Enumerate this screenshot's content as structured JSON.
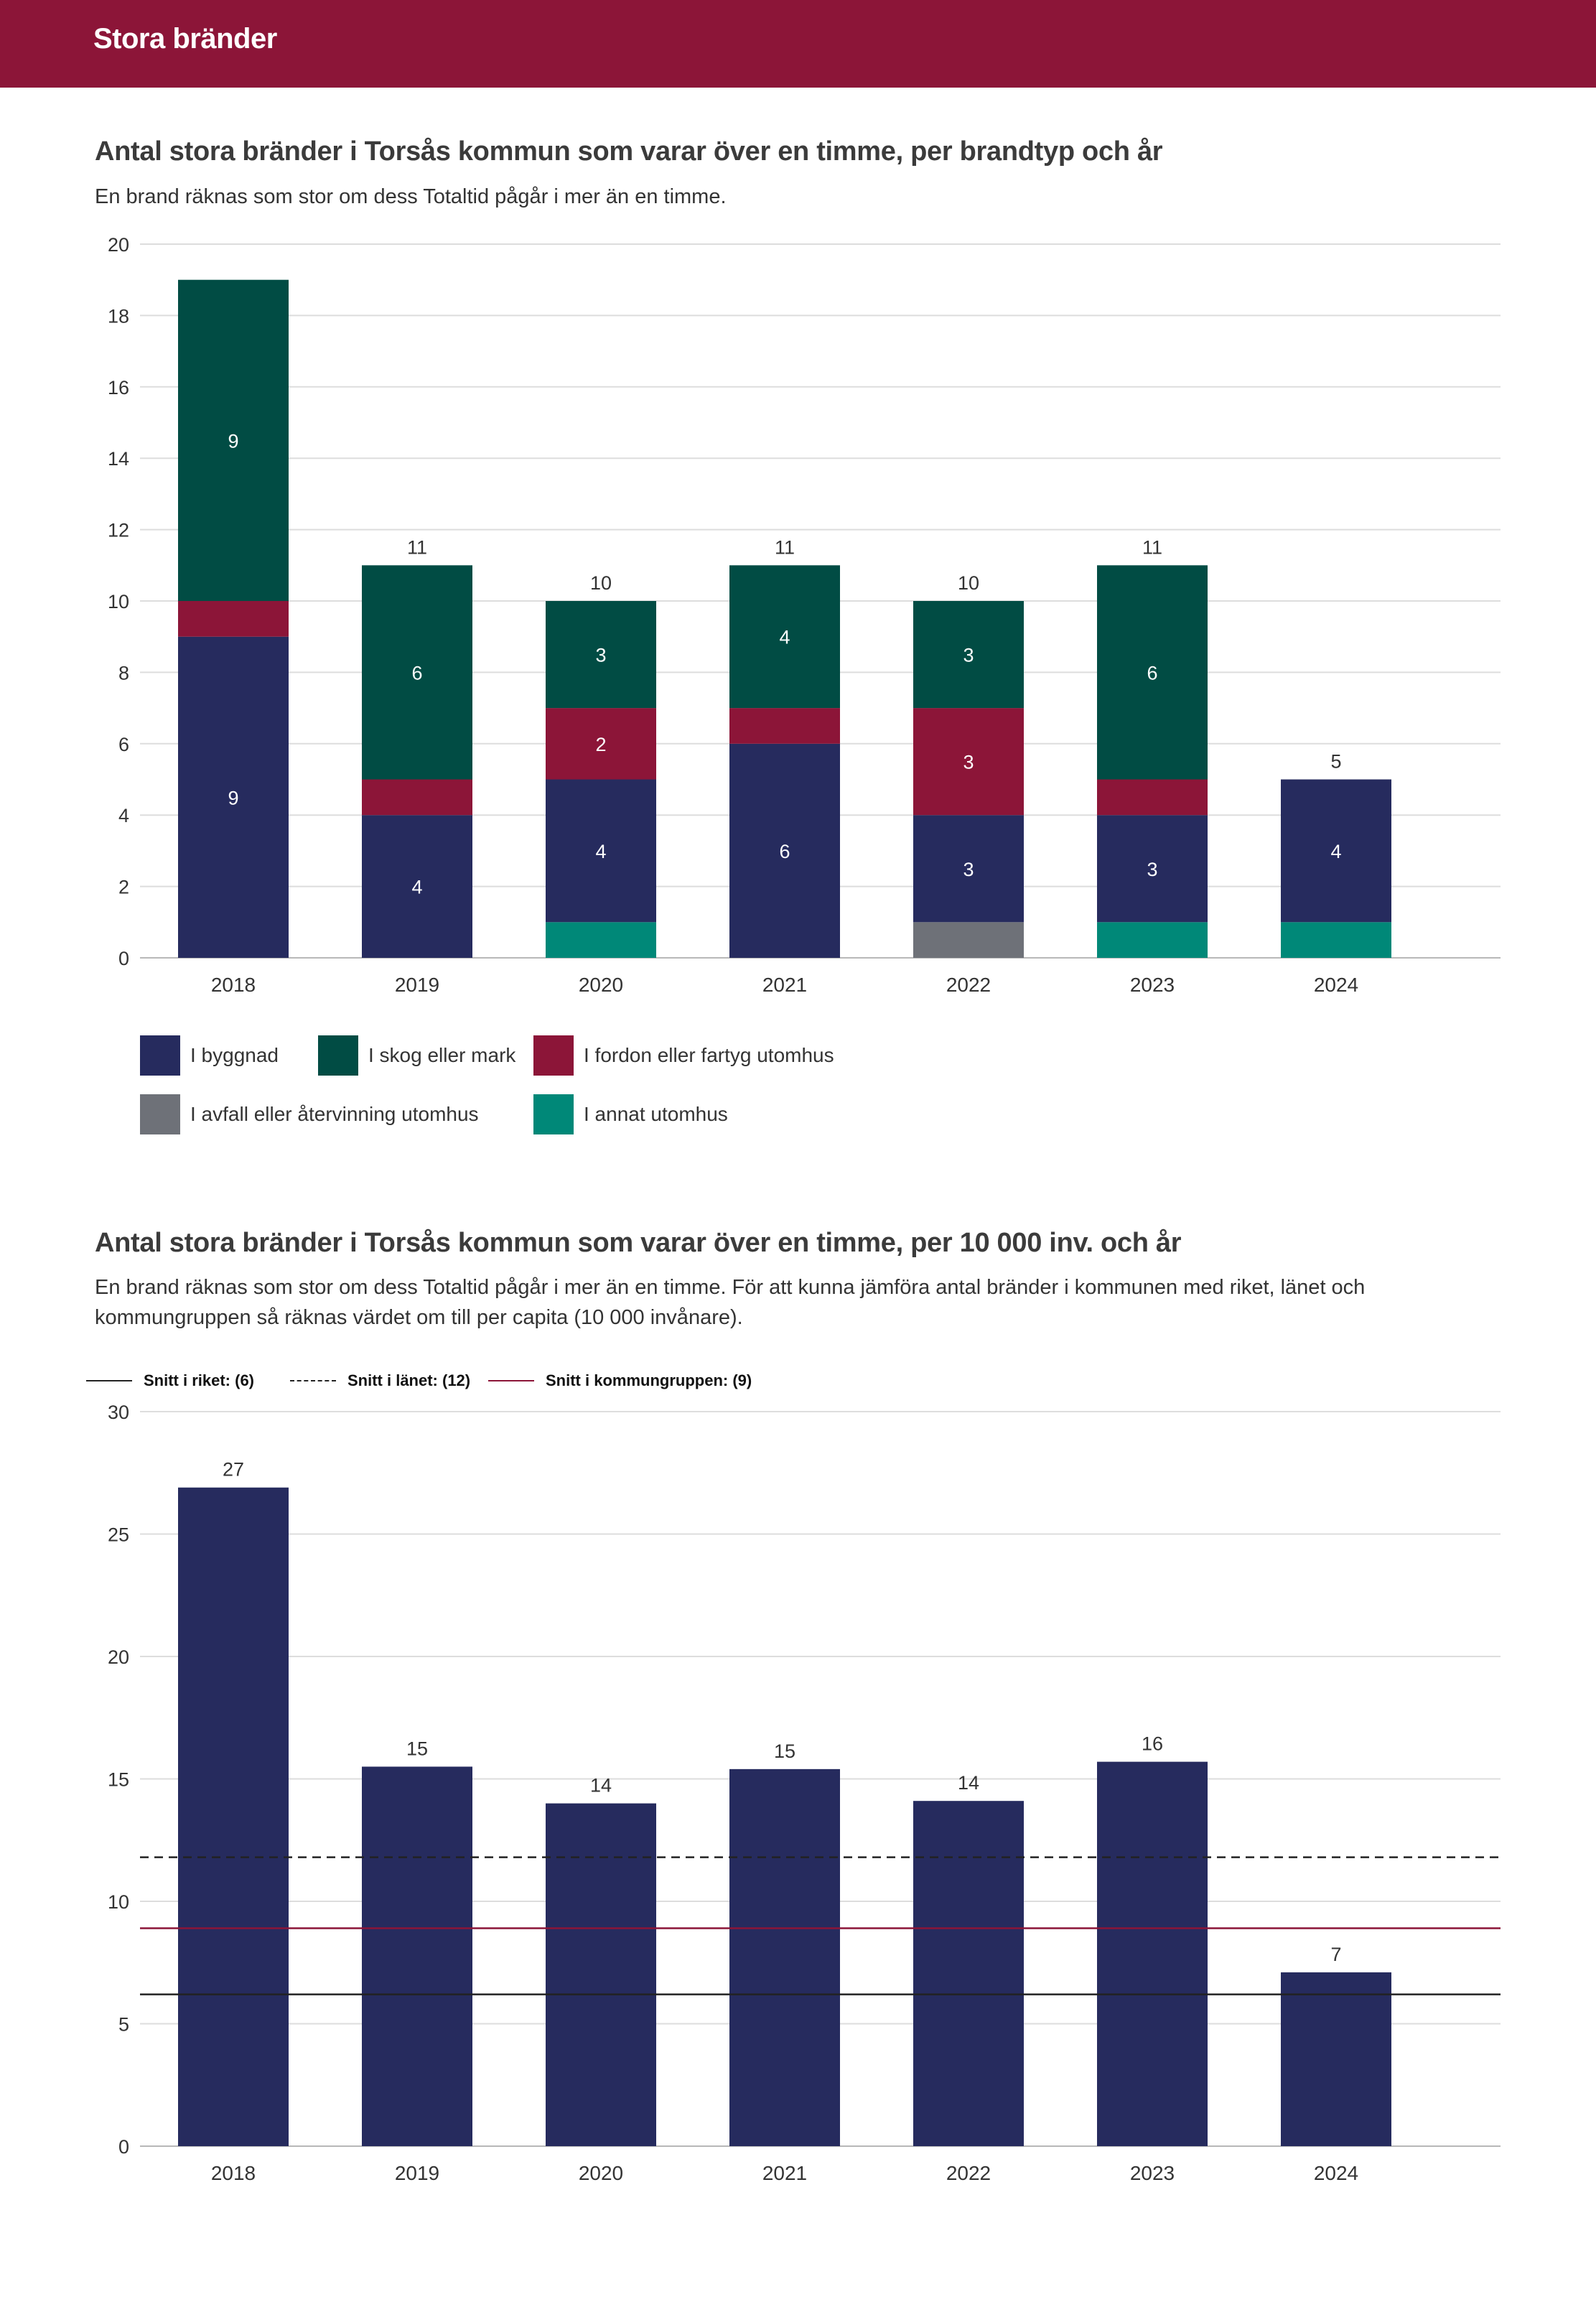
{
  "header": {
    "title": "Stora bränder"
  },
  "colors": {
    "header_bg": "#8c1538",
    "byggnad": "#262b5e",
    "skog": "#014c44",
    "fordon": "#8c1538",
    "avfall": "#6e7178",
    "annat": "#008878",
    "bar_single": "#262b5e",
    "grid": "#dddddd"
  },
  "chart1": {
    "title": "Antal stora bränder i Torsås kommun som varar över en timme, per brandtyp och år",
    "subtitle": "En brand räknas som stor om dess Totaltid pågår i mer än en timme."
  },
  "chart2": {
    "title": "Antal stora bränder i Torsås kommun som varar över en timme, per 10 000 inv. och år",
    "subtitle": "En brand räknas som stor om dess Totaltid pågår i mer än en timme. För att kunna jämföra antal bränder i kommunen med riket, länet och kommungruppen så räknas värdet om till per capita (10 000 invånare).",
    "ref_legend": [
      {
        "label": "Snitt i riket: (6)",
        "style": "solid",
        "color": "#222222"
      },
      {
        "label": "Snitt i länet: (12)",
        "style": "dashed",
        "color": "#222222"
      },
      {
        "label": "Snitt i kommungruppen: (9)",
        "style": "solid",
        "color": "#8c1538"
      }
    ]
  },
  "chart_data": [
    {
      "type": "bar",
      "stacked": true,
      "title": "Antal stora bränder i Torsås kommun som varar över en timme, per brandtyp och år",
      "categories": [
        "2018",
        "2019",
        "2020",
        "2021",
        "2022",
        "2023",
        "2024"
      ],
      "ylim": [
        0,
        20
      ],
      "yticks": [
        0,
        2,
        4,
        6,
        8,
        10,
        12,
        14,
        16,
        18,
        20
      ],
      "grid": true,
      "legend_position": "bottom",
      "series": [
        {
          "name": "I annat utomhus",
          "color": "#008878",
          "values": [
            0,
            0,
            1,
            0,
            0,
            1,
            1
          ],
          "labels": [
            "",
            "",
            "",
            "",
            "",
            "",
            ""
          ]
        },
        {
          "name": "I avfall eller återvinning utomhus",
          "color": "#6e7178",
          "values": [
            0,
            0,
            0,
            0,
            1,
            0,
            0
          ],
          "labels": [
            "",
            "",
            "",
            "",
            "",
            "",
            ""
          ]
        },
        {
          "name": "I byggnad",
          "color": "#262b5e",
          "values": [
            9,
            4,
            4,
            6,
            3,
            3,
            4
          ],
          "labels": [
            "9",
            "4",
            "4",
            "6",
            "3",
            "3",
            "4"
          ]
        },
        {
          "name": "I fordon eller fartyg utomhus",
          "color": "#8c1538",
          "values": [
            1,
            1,
            2,
            1,
            3,
            1,
            0
          ],
          "labels": [
            "",
            "",
            "2",
            "",
            "3",
            "",
            ""
          ]
        },
        {
          "name": "I skog eller mark",
          "color": "#014c44",
          "values": [
            9,
            6,
            3,
            4,
            3,
            6,
            0
          ],
          "labels": [
            "9",
            "6",
            "3",
            "4",
            "3",
            "6",
            ""
          ]
        }
      ],
      "totals": [
        "",
        "11",
        "10",
        "11",
        "10",
        "11",
        "5"
      ]
    },
    {
      "type": "bar",
      "title": "Antal stora bränder i Torsås kommun som varar över en timme, per 10 000 inv. och år",
      "categories": [
        "2018",
        "2019",
        "2020",
        "2021",
        "2022",
        "2023",
        "2024"
      ],
      "values": [
        26.9,
        15.5,
        14.0,
        15.4,
        14.1,
        15.7,
        7.1
      ],
      "value_labels": [
        "27",
        "15",
        "14",
        "15",
        "14",
        "16",
        "7"
      ],
      "ylim": [
        0,
        30
      ],
      "yticks": [
        0,
        5,
        10,
        15,
        20,
        25,
        30
      ],
      "grid": true,
      "reference_lines": [
        {
          "name": "Snitt i riket",
          "value": 6.2,
          "style": "solid",
          "color": "#222222"
        },
        {
          "name": "Snitt i länet",
          "value": 11.8,
          "style": "dashed",
          "color": "#222222"
        },
        {
          "name": "Snitt i kommungruppen",
          "value": 8.9,
          "style": "solid",
          "color": "#8c1538"
        }
      ]
    }
  ],
  "legend": [
    {
      "label": "I byggnad",
      "color": "#262b5e"
    },
    {
      "label": "I skog eller mark",
      "color": "#014c44"
    },
    {
      "label": "I fordon eller fartyg utomhus",
      "color": "#8c1538"
    },
    {
      "label": "I avfall eller återvinning utomhus",
      "color": "#6e7178"
    },
    {
      "label": "I annat utomhus",
      "color": "#008878"
    }
  ]
}
